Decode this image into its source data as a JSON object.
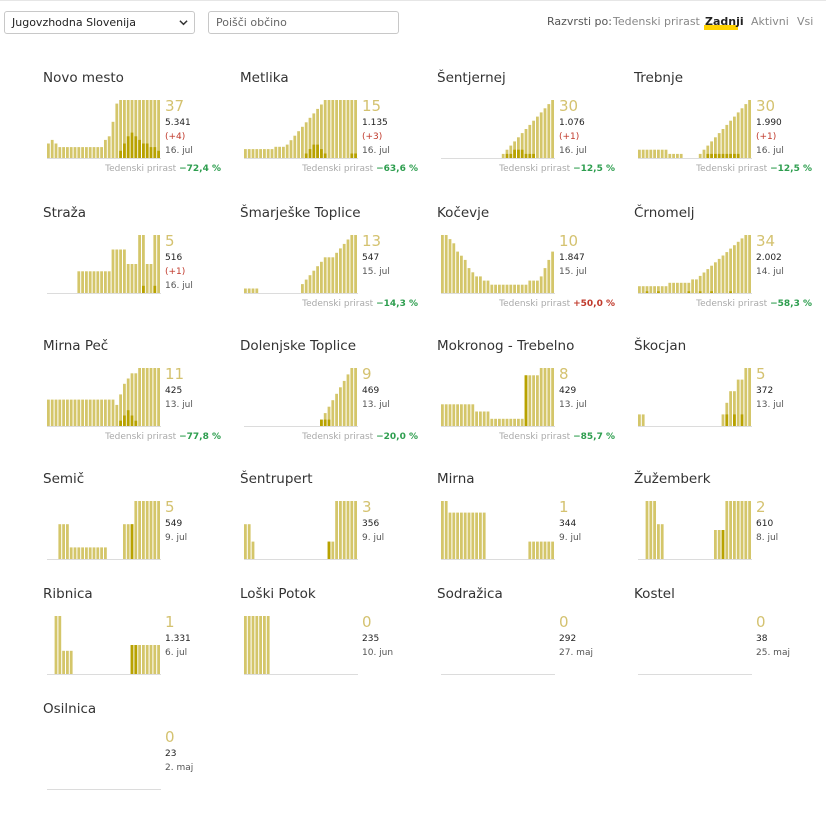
{
  "header": {
    "region_select_value": "Jugovzhodna Slovenija",
    "search_placeholder": "Poišči občino",
    "sort_label": "Razvrsti po:",
    "sort_options": [
      "Tedenski prirast",
      "Zadnji",
      "Aktivni",
      "Vsi"
    ],
    "active_sort": "Zadnji"
  },
  "weekly_label": "Tedenski prirast",
  "colors": {
    "bar": "#d4c66a",
    "bar_dark": "#b8a200",
    "accent": "#ffd200",
    "negative": "#2e9e4f",
    "positive": "#c0392b"
  },
  "municipalities": [
    {
      "name": "Novo mesto",
      "latest": "37",
      "total": "5.341",
      "delta": "(+4)",
      "date": "16. jul",
      "weekly": "−72,4 %",
      "weekly_sign": "neg",
      "bars": [
        8,
        10,
        8,
        6,
        6,
        6,
        6,
        6,
        6,
        6,
        6,
        6,
        6,
        6,
        6,
        10,
        12,
        20,
        30,
        32,
        32,
        32,
        32,
        32,
        32,
        32,
        32,
        32,
        32,
        32
      ],
      "dark": [
        0,
        0,
        0,
        0,
        0,
        0,
        0,
        0,
        0,
        0,
        0,
        0,
        0,
        0,
        0,
        0,
        0,
        0,
        0,
        4,
        8,
        12,
        14,
        12,
        10,
        8,
        8,
        6,
        6,
        4
      ]
    },
    {
      "name": "Metlika",
      "latest": "15",
      "total": "1.135",
      "delta": "(+3)",
      "date": "16. jul",
      "weekly": "−63,6 %",
      "weekly_sign": "neg",
      "bars": [
        4,
        4,
        4,
        4,
        4,
        4,
        4,
        4,
        5,
        5,
        5,
        6,
        8,
        10,
        12,
        14,
        16,
        18,
        20,
        22,
        24,
        26,
        26,
        26,
        26,
        26,
        26,
        26,
        26,
        26
      ],
      "dark": [
        0,
        0,
        0,
        0,
        0,
        0,
        0,
        0,
        0,
        0,
        0,
        0,
        0,
        0,
        0,
        0,
        2,
        4,
        6,
        6,
        4,
        2,
        0,
        0,
        0,
        0,
        0,
        0,
        2,
        2
      ]
    },
    {
      "name": "Šentjernej",
      "latest": "30",
      "total": "1.076",
      "delta": "(+1)",
      "date": "16. jul",
      "weekly": "−12,5 %",
      "weekly_sign": "neg",
      "bars": [
        0,
        0,
        0,
        0,
        0,
        0,
        0,
        0,
        0,
        0,
        0,
        0,
        0,
        0,
        0,
        0,
        2,
        4,
        6,
        8,
        10,
        12,
        14,
        16,
        18,
        20,
        22,
        24,
        26,
        28
      ],
      "dark": [
        0,
        0,
        0,
        0,
        0,
        0,
        0,
        0,
        0,
        0,
        0,
        0,
        0,
        0,
        0,
        0,
        0,
        2,
        2,
        4,
        4,
        4,
        2,
        2,
        2,
        0,
        0,
        0,
        0,
        0
      ]
    },
    {
      "name": "Trebnje",
      "latest": "30",
      "total": "1.990",
      "delta": "(+1)",
      "date": "16. jul",
      "weekly": "−12,5 %",
      "weekly_sign": "neg",
      "bars": [
        4,
        4,
        4,
        4,
        4,
        4,
        4,
        4,
        2,
        2,
        2,
        2,
        0,
        0,
        0,
        0,
        2,
        4,
        6,
        8,
        10,
        12,
        14,
        16,
        18,
        20,
        22,
        24,
        26,
        28
      ],
      "dark": [
        0,
        0,
        0,
        0,
        0,
        0,
        0,
        0,
        0,
        0,
        0,
        0,
        0,
        0,
        0,
        0,
        0,
        0,
        2,
        2,
        2,
        2,
        2,
        2,
        2,
        2,
        2,
        0,
        0,
        0
      ]
    },
    {
      "name": "Straža",
      "latest": "5",
      "total": "516",
      "delta": "(+1)",
      "date": "16. jul",
      "weekly": "",
      "weekly_sign": "",
      "bars": [
        0,
        0,
        0,
        0,
        0,
        0,
        0,
        0,
        3,
        3,
        3,
        3,
        3,
        3,
        3,
        3,
        3,
        6,
        6,
        6,
        6,
        4,
        4,
        4,
        8,
        8,
        4,
        4,
        8,
        8
      ],
      "dark": [
        0,
        0,
        0,
        0,
        0,
        0,
        0,
        0,
        0,
        0,
        0,
        0,
        0,
        0,
        0,
        0,
        0,
        0,
        0,
        0,
        0,
        0,
        0,
        0,
        0,
        1,
        0,
        0,
        1,
        0
      ]
    },
    {
      "name": "Šmarješke Toplice",
      "latest": "13",
      "total": "547",
      "delta": "",
      "date": "15. jul",
      "weekly": "−14,3 %",
      "weekly_sign": "neg",
      "bars": [
        1,
        1,
        1,
        1,
        0,
        0,
        0,
        0,
        0,
        0,
        0,
        0,
        0,
        0,
        0,
        2,
        3,
        4,
        5,
        6,
        7,
        8,
        8,
        8,
        9,
        10,
        11,
        12,
        13,
        13
      ],
      "dark": [
        0,
        0,
        0,
        0,
        0,
        0,
        0,
        0,
        0,
        0,
        0,
        0,
        0,
        0,
        0,
        0,
        0,
        0,
        0,
        0,
        0,
        0,
        0,
        0,
        0,
        0,
        0,
        0,
        0,
        0
      ]
    },
    {
      "name": "Kočevje",
      "latest": "10",
      "total": "1.847",
      "delta": "",
      "date": "15. jul",
      "weekly": "+50,0 %",
      "weekly_sign": "pos",
      "bars": [
        14,
        14,
        13,
        12,
        10,
        9,
        8,
        6,
        5,
        4,
        4,
        3,
        3,
        2,
        2,
        2,
        2,
        2,
        2,
        2,
        2,
        2,
        2,
        3,
        3,
        3,
        4,
        6,
        8,
        10
      ],
      "dark": [
        0,
        0,
        0,
        0,
        0,
        0,
        0,
        0,
        0,
        0,
        0,
        0,
        0,
        0,
        0,
        0,
        0,
        0,
        0,
        0,
        0,
        0,
        0,
        0,
        0,
        0,
        0,
        0,
        0,
        0
      ]
    },
    {
      "name": "Črnomelj",
      "latest": "34",
      "total": "2.002",
      "delta": "",
      "date": "14. jul",
      "weekly": "−58,3 %",
      "weekly_sign": "neg",
      "bars": [
        4,
        4,
        4,
        4,
        4,
        4,
        4,
        4,
        6,
        6,
        6,
        6,
        6,
        6,
        8,
        8,
        10,
        12,
        14,
        16,
        18,
        20,
        22,
        24,
        26,
        28,
        30,
        32,
        34,
        34
      ],
      "dark": [
        0,
        0,
        1,
        0,
        0,
        1,
        0,
        0,
        0,
        0,
        0,
        0,
        0,
        1,
        0,
        0,
        1,
        0,
        0,
        1,
        0,
        0,
        0,
        0,
        1,
        0,
        0,
        0,
        0,
        0
      ]
    },
    {
      "name": "Mirna Peč",
      "latest": "11",
      "total": "425",
      "delta": "",
      "date": "13. jul",
      "weekly": "−77,8 %",
      "weekly_sign": "neg",
      "bars": [
        5,
        5,
        5,
        5,
        5,
        5,
        5,
        5,
        5,
        5,
        5,
        5,
        5,
        5,
        5,
        5,
        5,
        5,
        4,
        6,
        8,
        9,
        10,
        10,
        11,
        11,
        11,
        11,
        11,
        11
      ],
      "dark": [
        0,
        0,
        0,
        0,
        0,
        0,
        0,
        0,
        0,
        0,
        0,
        0,
        0,
        0,
        0,
        0,
        0,
        0,
        0,
        1,
        2,
        3,
        2,
        1,
        0,
        0,
        0,
        0,
        0,
        0
      ]
    },
    {
      "name": "Dolenjske Toplice",
      "latest": "9",
      "total": "469",
      "delta": "",
      "date": "13. jul",
      "weekly": "−20,0 %",
      "weekly_sign": "neg",
      "bars": [
        0,
        0,
        0,
        0,
        0,
        0,
        0,
        0,
        0,
        0,
        0,
        0,
        0,
        0,
        0,
        0,
        0,
        0,
        0,
        0,
        1,
        2,
        3,
        4,
        5,
        6,
        7,
        8,
        9,
        9
      ],
      "dark": [
        0,
        0,
        0,
        0,
        0,
        0,
        0,
        0,
        0,
        0,
        0,
        0,
        0,
        0,
        0,
        0,
        0,
        0,
        0,
        0,
        1,
        1,
        1,
        0,
        0,
        0,
        0,
        0,
        0,
        0
      ]
    },
    {
      "name": "Mokronog - Trebelno",
      "latest": "8",
      "total": "429",
      "delta": "",
      "date": "13. jul",
      "weekly": "−85,7 %",
      "weekly_sign": "neg",
      "bars": [
        3,
        3,
        3,
        3,
        3,
        3,
        3,
        3,
        3,
        2,
        2,
        2,
        2,
        1,
        1,
        1,
        1,
        1,
        1,
        1,
        1,
        1,
        7,
        7,
        7,
        7,
        8,
        8,
        8,
        8
      ],
      "dark": [
        0,
        0,
        0,
        0,
        0,
        0,
        0,
        0,
        0,
        0,
        0,
        0,
        0,
        0,
        0,
        0,
        0,
        0,
        0,
        0,
        0,
        0,
        7,
        0,
        0,
        0,
        0,
        0,
        0,
        0
      ]
    },
    {
      "name": "Škocjan",
      "latest": "5",
      "total": "372",
      "delta": "",
      "date": "13. jul",
      "weekly": "",
      "weekly_sign": "",
      "bars": [
        1,
        1,
        0,
        0,
        0,
        0,
        0,
        0,
        0,
        0,
        0,
        0,
        0,
        0,
        0,
        0,
        0,
        0,
        0,
        0,
        0,
        0,
        1,
        2,
        3,
        3,
        4,
        4,
        5,
        5
      ],
      "dark": [
        0,
        0,
        0,
        0,
        0,
        0,
        0,
        0,
        0,
        0,
        0,
        0,
        0,
        0,
        0,
        0,
        0,
        0,
        0,
        0,
        0,
        0,
        0,
        1,
        0,
        1,
        0,
        1,
        0,
        0
      ]
    },
    {
      "name": "Semič",
      "latest": "5",
      "total": "549",
      "delta": "",
      "date": "9. jul",
      "weekly": "",
      "weekly_sign": "",
      "bars": [
        0,
        0,
        0,
        6,
        6,
        6,
        2,
        2,
        2,
        2,
        2,
        2,
        2,
        2,
        2,
        2,
        0,
        0,
        0,
        0,
        6,
        6,
        6,
        10,
        10,
        10,
        10,
        10,
        10,
        10
      ],
      "dark": [
        0,
        0,
        0,
        0,
        0,
        0,
        0,
        0,
        0,
        0,
        0,
        0,
        0,
        0,
        0,
        0,
        0,
        0,
        0,
        0,
        0,
        0,
        6,
        0,
        0,
        0,
        0,
        0,
        0,
        0
      ]
    },
    {
      "name": "Šentrupert",
      "latest": "3",
      "total": "356",
      "delta": "",
      "date": "9. jul",
      "weekly": "",
      "weekly_sign": "",
      "bars": [
        6,
        6,
        3,
        0,
        0,
        0,
        0,
        0,
        0,
        0,
        0,
        0,
        0,
        0,
        0,
        0,
        0,
        0,
        0,
        0,
        0,
        0,
        3,
        3,
        10,
        10,
        10,
        10,
        10,
        10
      ],
      "dark": [
        0,
        0,
        0,
        0,
        0,
        0,
        0,
        0,
        0,
        0,
        0,
        0,
        0,
        0,
        0,
        0,
        0,
        0,
        0,
        0,
        0,
        0,
        3,
        0,
        0,
        0,
        0,
        0,
        0,
        0
      ]
    },
    {
      "name": "Mirna",
      "latest": "1",
      "total": "344",
      "delta": "",
      "date": "9. jul",
      "weekly": "",
      "weekly_sign": "",
      "bars": [
        10,
        10,
        8,
        8,
        8,
        8,
        8,
        8,
        8,
        8,
        8,
        8,
        0,
        0,
        0,
        0,
        0,
        0,
        0,
        0,
        0,
        0,
        0,
        3,
        3,
        3,
        3,
        3,
        3,
        3
      ],
      "dark": [
        0,
        0,
        0,
        0,
        0,
        0,
        0,
        0,
        0,
        0,
        0,
        0,
        0,
        0,
        0,
        0,
        0,
        0,
        0,
        0,
        0,
        0,
        0,
        0,
        0,
        0,
        0,
        0,
        0,
        0
      ]
    },
    {
      "name": "Žužemberk",
      "latest": "2",
      "total": "610",
      "delta": "",
      "date": "8. jul",
      "weekly": "",
      "weekly_sign": "",
      "bars": [
        0,
        0,
        10,
        10,
        10,
        6,
        6,
        0,
        0,
        0,
        0,
        0,
        0,
        0,
        0,
        0,
        0,
        0,
        0,
        0,
        5,
        5,
        5,
        10,
        10,
        10,
        10,
        10,
        10,
        10
      ],
      "dark": [
        0,
        0,
        0,
        0,
        0,
        0,
        0,
        0,
        0,
        0,
        0,
        0,
        0,
        0,
        0,
        0,
        0,
        0,
        0,
        0,
        0,
        0,
        5,
        0,
        0,
        0,
        0,
        0,
        0,
        0
      ]
    },
    {
      "name": "Ribnica",
      "latest": "1",
      "total": "1.331",
      "delta": "",
      "date": "6. jul",
      "weekly": "",
      "weekly_sign": "",
      "bars": [
        0,
        0,
        10,
        10,
        4,
        4,
        4,
        0,
        0,
        0,
        0,
        0,
        0,
        0,
        0,
        0,
        0,
        0,
        0,
        0,
        0,
        0,
        5,
        5,
        5,
        5,
        5,
        5,
        5,
        5
      ],
      "dark": [
        0,
        0,
        0,
        0,
        0,
        0,
        0,
        0,
        0,
        0,
        0,
        0,
        0,
        0,
        0,
        0,
        0,
        0,
        0,
        0,
        0,
        0,
        5,
        5,
        0,
        0,
        0,
        0,
        0,
        0
      ]
    },
    {
      "name": "Loški Potok",
      "latest": "0",
      "total": "235",
      "delta": "",
      "date": "10. jun",
      "weekly": "",
      "weekly_sign": "",
      "bars": [
        10,
        10,
        10,
        10,
        10,
        10,
        10,
        0,
        0,
        0,
        0,
        0,
        0,
        0,
        0,
        0,
        0,
        0,
        0,
        0,
        0,
        0,
        0,
        0,
        0,
        0,
        0,
        0,
        0,
        0
      ],
      "dark": [
        0,
        0,
        0,
        0,
        0,
        0,
        0,
        0,
        0,
        0,
        0,
        0,
        0,
        0,
        0,
        0,
        0,
        0,
        0,
        0,
        0,
        0,
        0,
        0,
        0,
        0,
        0,
        0,
        0,
        0
      ]
    },
    {
      "name": "Sodražica",
      "latest": "0",
      "total": "292",
      "delta": "",
      "date": "27. maj",
      "weekly": "",
      "weekly_sign": "",
      "bars": [
        0,
        0,
        0,
        0,
        0,
        0,
        0,
        0,
        0,
        0,
        0,
        0,
        0,
        0,
        0,
        0,
        0,
        0,
        0,
        0,
        0,
        0,
        0,
        0,
        0,
        0,
        0,
        0,
        0,
        0
      ],
      "dark": [
        0,
        0,
        0,
        0,
        0,
        0,
        0,
        0,
        0,
        0,
        0,
        0,
        0,
        0,
        0,
        0,
        0,
        0,
        0,
        0,
        0,
        0,
        0,
        0,
        0,
        0,
        0,
        0,
        0,
        0
      ]
    },
    {
      "name": "Kostel",
      "latest": "0",
      "total": "38",
      "delta": "",
      "date": "25. maj",
      "weekly": "",
      "weekly_sign": "",
      "bars": [
        0,
        0,
        0,
        0,
        0,
        0,
        0,
        0,
        0,
        0,
        0,
        0,
        0,
        0,
        0,
        0,
        0,
        0,
        0,
        0,
        0,
        0,
        0,
        0,
        0,
        0,
        0,
        0,
        0,
        0
      ],
      "dark": [
        0,
        0,
        0,
        0,
        0,
        0,
        0,
        0,
        0,
        0,
        0,
        0,
        0,
        0,
        0,
        0,
        0,
        0,
        0,
        0,
        0,
        0,
        0,
        0,
        0,
        0,
        0,
        0,
        0,
        0
      ]
    },
    {
      "name": "Osilnica",
      "latest": "0",
      "total": "23",
      "delta": "",
      "date": "2. maj",
      "weekly": "",
      "weekly_sign": "",
      "bars": [
        0,
        0,
        0,
        0,
        0,
        0,
        0,
        0,
        0,
        0,
        0,
        0,
        0,
        0,
        0,
        0,
        0,
        0,
        0,
        0,
        0,
        0,
        0,
        0,
        0,
        0,
        0,
        0,
        0,
        0
      ],
      "dark": [
        0,
        0,
        0,
        0,
        0,
        0,
        0,
        0,
        0,
        0,
        0,
        0,
        0,
        0,
        0,
        0,
        0,
        0,
        0,
        0,
        0,
        0,
        0,
        0,
        0,
        0,
        0,
        0,
        0,
        0
      ]
    }
  ]
}
